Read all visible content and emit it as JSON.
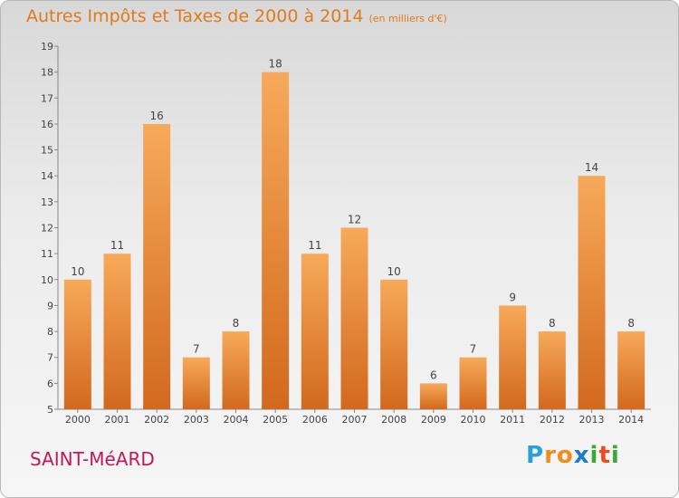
{
  "title": "Autres Impôts et Taxes de 2000 à 2014",
  "unit": "(en milliers d'€)",
  "commune": "SAINT-MéARD",
  "logo": {
    "letters": [
      "P",
      "r",
      "o",
      "x",
      "i",
      "t",
      "i"
    ],
    "colors": [
      "#2a9fd8",
      "#f08c1a",
      "#f08c1a",
      "#1d7bc8",
      "#3aaa35",
      "#e84e1b",
      "#3aaa35"
    ]
  },
  "colors": {
    "bar_light": "#f7a95a",
    "bar_dark": "#d2691e",
    "title": "#e07a1c",
    "commune": "#c2185b"
  },
  "chart_data": {
    "type": "bar",
    "categories": [
      "2000",
      "2001",
      "2002",
      "2003",
      "2004",
      "2005",
      "2006",
      "2007",
      "2008",
      "2009",
      "2010",
      "2011",
      "2012",
      "2013",
      "2014"
    ],
    "values": [
      10,
      11,
      16,
      7,
      8,
      18,
      11,
      12,
      10,
      6,
      7,
      9,
      8,
      14,
      8
    ],
    "ylim": [
      5,
      19
    ],
    "yticks": [
      "5",
      "6",
      "7",
      "8",
      "9",
      "10",
      "11",
      "12",
      "13",
      "14",
      "15",
      "16",
      "17",
      "18",
      "19"
    ],
    "grid": false
  }
}
